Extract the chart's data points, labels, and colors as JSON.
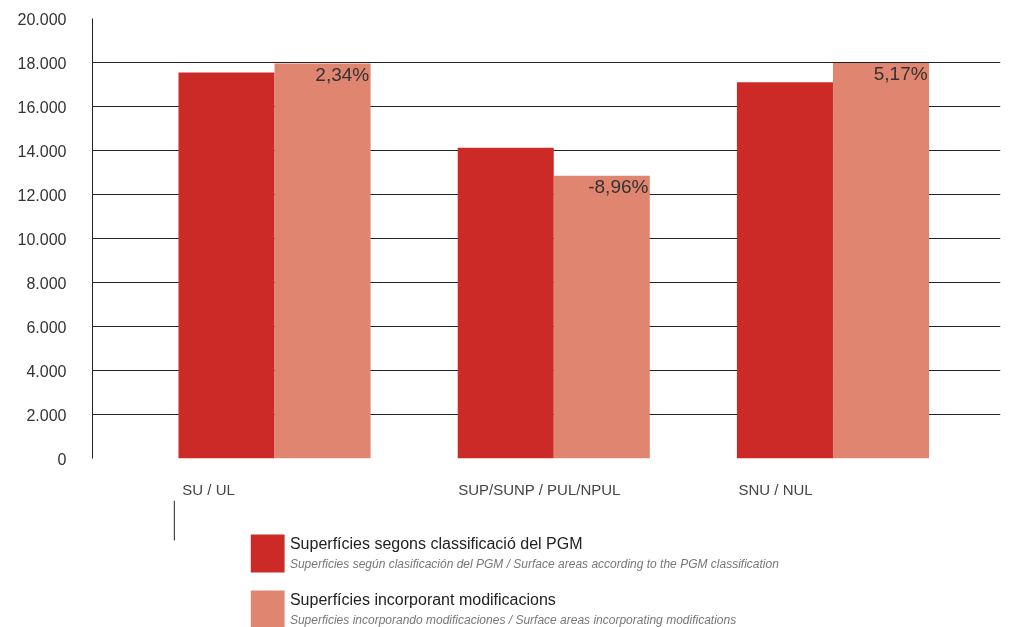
{
  "chart_data": {
    "type": "bar",
    "categories": [
      "SU / UL",
      "SUP/SUNP / PUL/NPUL",
      "SNU / NUL"
    ],
    "series": [
      {
        "name": "Superfícies segons classificació del PGM",
        "color": "#cc2a27",
        "values": [
          17550,
          14120,
          17100
        ]
      },
      {
        "name": "Superfícies incorporant modificacions",
        "color": "#e0856f",
        "values": [
          17950,
          12850,
          17980
        ]
      }
    ],
    "annotations": [
      "Superficies según clasificación del PGM / Surface areas according to the PGM classification",
      "Superficies incorporando modificaciones / Surface areas incorporating modifications",
      "2,34%",
      "-8,96%",
      "5,17%"
    ],
    "ylim": [
      0,
      20000
    ],
    "yticks": [
      {
        "value": 0,
        "label": "0"
      },
      {
        "value": 2000,
        "label": "2.000"
      },
      {
        "value": 4000,
        "label": "4.000"
      },
      {
        "value": 6000,
        "label": "6.000"
      },
      {
        "value": 8000,
        "label": "8.000"
      },
      {
        "value": 10000,
        "label": "10.000"
      },
      {
        "value": 12000,
        "label": "12.000"
      },
      {
        "value": 14000,
        "label": "14.000"
      },
      {
        "value": 16000,
        "label": "16.000"
      },
      {
        "value": 18000,
        "label": "18.000"
      },
      {
        "value": 20000,
        "label": "20.000"
      }
    ],
    "grid": "y",
    "legend": "bottom"
  }
}
